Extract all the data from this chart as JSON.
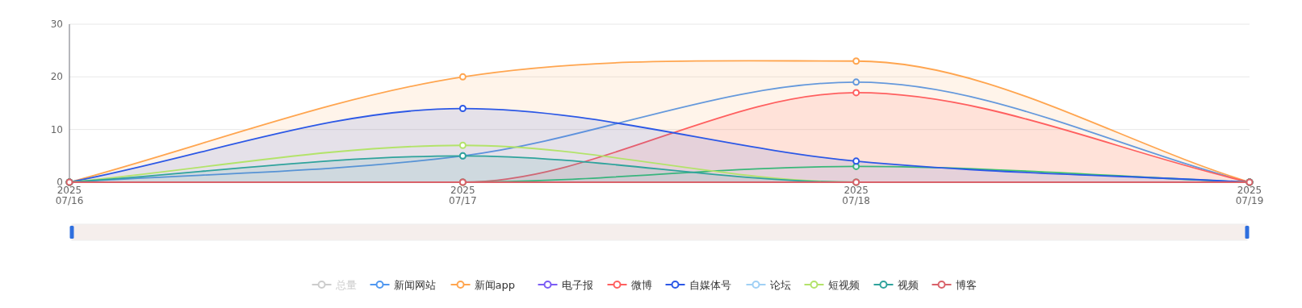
{
  "chart_data": {
    "type": "line",
    "x": [
      "2025-07-16",
      "2025-07-17",
      "2025-07-18",
      "2025-07-19"
    ],
    "xlim": [
      "2025-07-16",
      "2025-07-19"
    ],
    "xticks": [
      {
        "value": "2025-07-16",
        "label": "2025\n07/16"
      },
      {
        "value": "2025-07-17",
        "label": "2025\n07/17"
      },
      {
        "value": "2025-07-18",
        "label": "2025\n07/18"
      },
      {
        "value": "2025-07-19",
        "label": "2025\n07/19"
      }
    ],
    "ylim": [
      0,
      30
    ],
    "yticks": [
      0,
      10,
      20,
      30
    ],
    "grid": "y",
    "legend": "bottom",
    "marker": "circle",
    "line_style": "solid",
    "series": [
      {
        "name": "总量",
        "color": "#cccccc",
        "type": "other",
        "values": [
          null,
          null,
          null,
          null
        ]
      },
      {
        "name": "新闻网站",
        "color": "#5098f0",
        "values": [
          0,
          5,
          19,
          0
        ]
      },
      {
        "name": "新闻app",
        "color": "#ffa54f",
        "type": "area",
        "values": [
          0,
          20,
          23,
          0
        ]
      },
      {
        "name": "电子报",
        "color": "#7b5cf5",
        "values": [
          null,
          null,
          null,
          null
        ]
      },
      {
        "name": "微博",
        "color": "#ff5f5f",
        "type": "area",
        "values": [
          0,
          0,
          17,
          0
        ]
      },
      {
        "color": "#3cc46a",
        "values": [
          0,
          0,
          3,
          0
        ]
      },
      {
        "name": "自媒体号",
        "color": "#2c58e6",
        "type": "area",
        "values": [
          0,
          14,
          4,
          0
        ]
      },
      {
        "name": "论坛",
        "color": "#a0d0f5",
        "values": [
          null,
          null,
          null,
          null
        ]
      },
      {
        "name": "短视频",
        "color": "#b3e36a",
        "values": [
          0,
          7,
          0,
          0
        ]
      },
      {
        "name": "视频",
        "color": "#2fa39c",
        "type": "area",
        "values": [
          0,
          5,
          0,
          0
        ]
      },
      {
        "name": "博客",
        "color": "#d9626a",
        "values": [
          0,
          0,
          0,
          0
        ]
      }
    ]
  }
}
